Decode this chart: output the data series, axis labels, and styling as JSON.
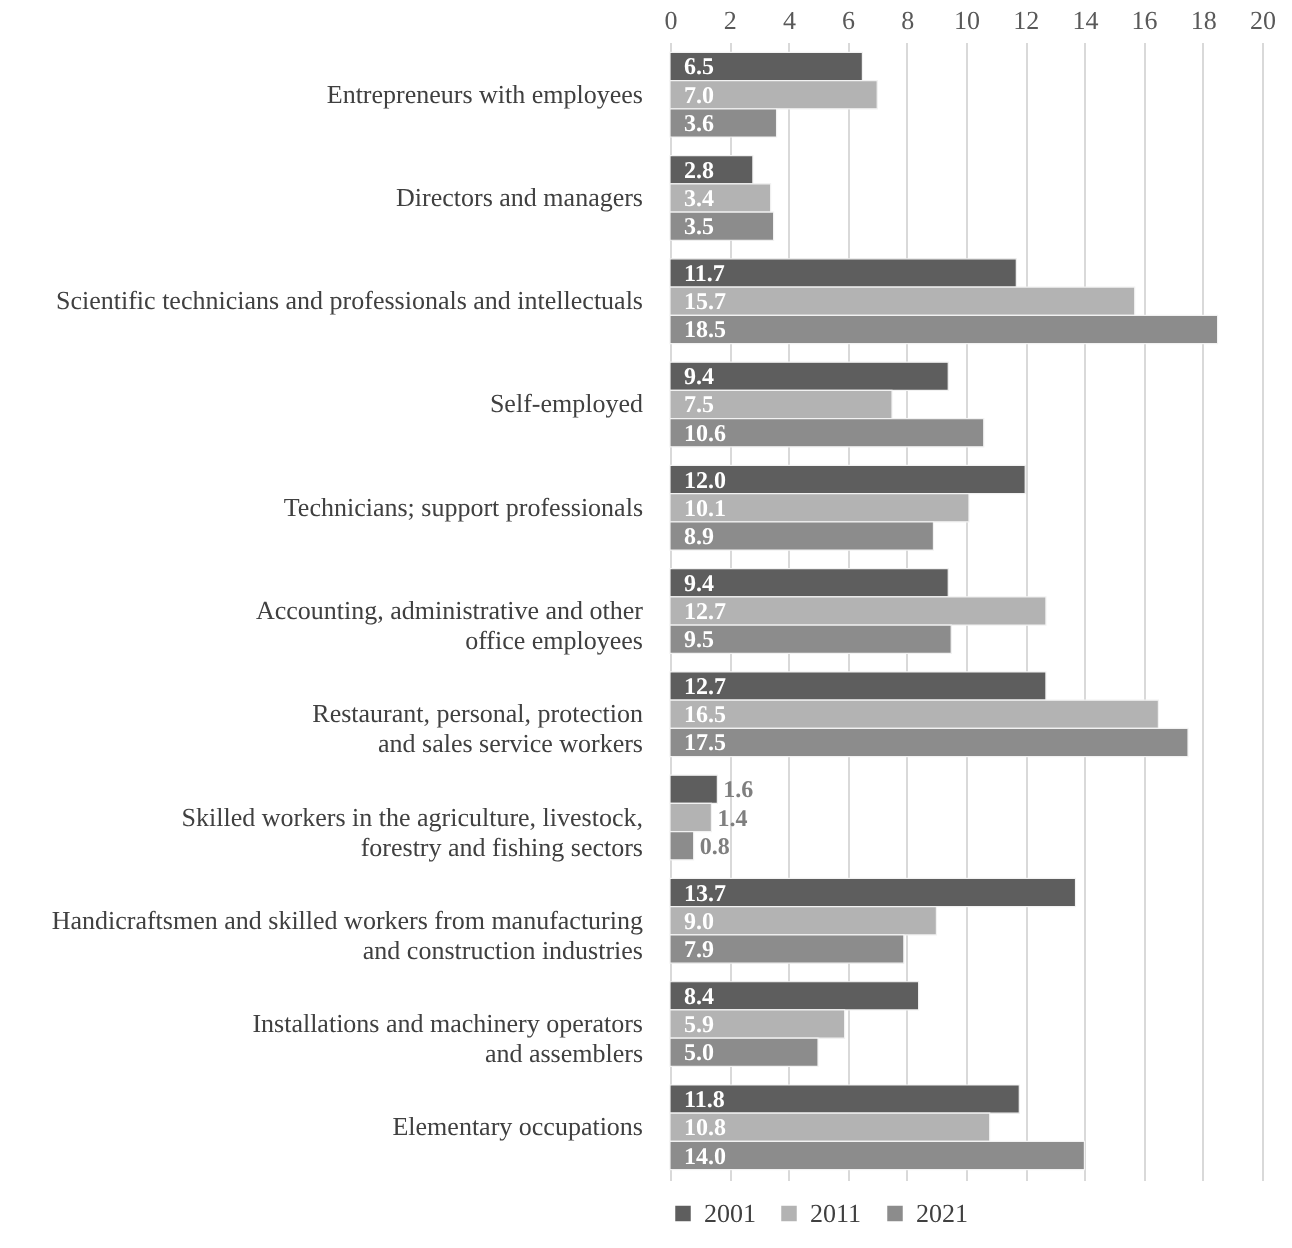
{
  "chart_data": {
    "type": "bar",
    "orientation": "horizontal",
    "categories": [
      "Entrepreneurs with employees",
      "Directors and managers",
      "Scientific technicians and professionals and intellectuals",
      "Self-employed",
      "Technicians; support professionals",
      "Accounting, administrative and other\noffice employees",
      "Restaurant, personal, protection\nand sales service workers",
      "Skilled workers in the agriculture, livestock,\nforestry and fishing sectors",
      "Handicraftsmen and skilled workers from manufacturing\nand construction industries",
      "Installations and machinery operators\nand assemblers",
      "Elementary occupations"
    ],
    "series": [
      {
        "name": "2001",
        "color": "#5e5e5e",
        "values": [
          6.5,
          2.8,
          11.7,
          9.4,
          12.0,
          9.4,
          12.7,
          1.6,
          13.7,
          8.4,
          11.8
        ],
        "value_labels": [
          "6.5",
          "2.8",
          "11.7",
          "9.4",
          "12.0",
          "9.4",
          "12.7",
          "1.6",
          "13.7",
          "8.4",
          "11.8"
        ]
      },
      {
        "name": "2011",
        "color": "#b3b3b3",
        "values": [
          7.0,
          3.4,
          15.7,
          7.5,
          10.1,
          12.7,
          16.5,
          1.4,
          9.0,
          5.9,
          10.8
        ],
        "value_labels": [
          "7.0",
          "3.4",
          "15.7",
          "7.5",
          "10.1",
          "12.7",
          "16.5",
          "1.4",
          "9.0",
          "5.9",
          "10.8"
        ]
      },
      {
        "name": "2021",
        "color": "#8c8c8c",
        "values": [
          3.6,
          3.5,
          18.5,
          10.6,
          8.9,
          9.5,
          17.5,
          0.8,
          7.9,
          5.0,
          14.0
        ],
        "value_labels": [
          "3.6",
          "3.5",
          "18.5",
          "10.6",
          "8.9",
          "9.5",
          "17.5",
          "0.8",
          "7.9",
          "5.0",
          "14.0"
        ]
      }
    ],
    "xlim": [
      0,
      20
    ],
    "xticks": [
      0,
      2,
      4,
      6,
      8,
      10,
      12,
      14,
      16,
      18,
      20
    ],
    "grid": "x",
    "legend": "bottom"
  }
}
